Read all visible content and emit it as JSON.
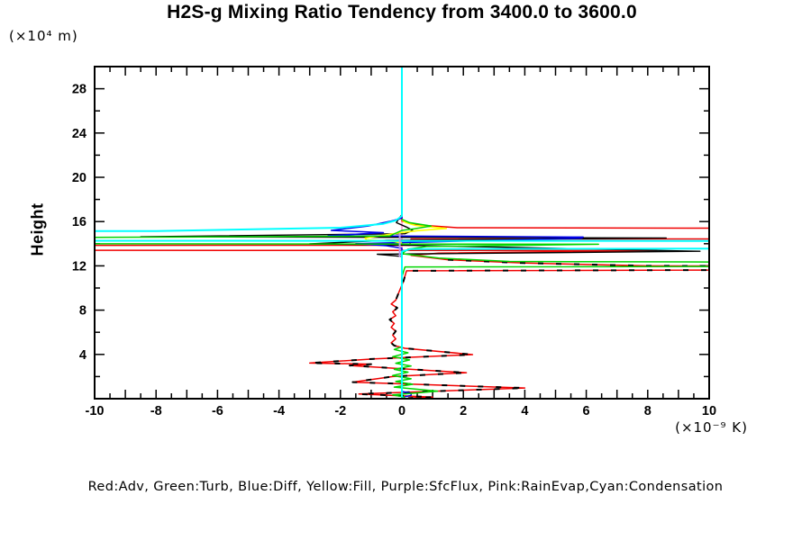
{
  "title": "H2S-g Mixing Ratio Tendency from 3400.0 to 3600.0",
  "y_axis": {
    "label": "Height",
    "unit_label": "(×10⁴ m)"
  },
  "x_axis": {
    "unit_label": "(×10⁻⁹ K)"
  },
  "legend": "Red:Adv, Green:Turb, Blue:Diff, Yellow:Fill, Purple:SfcFlux, Pink:RainEvap,Cyan:Condensation",
  "colors": {
    "red": "#f00000",
    "green": "#00d400",
    "blue": "#0000e8",
    "yellow": "#ffff00",
    "purple": "#bb99ee",
    "pink": "#ff9ed2",
    "cyan": "#00ffff",
    "black": "#000000"
  },
  "chart_data": {
    "type": "line",
    "title": "H2S-g Mixing Ratio Tendency from 3400.0 to 3600.0",
    "xlabel": "(×10⁻⁹ K)",
    "ylabel": "Height (×10⁴ m)",
    "xlim": [
      -10,
      10
    ],
    "ylim": [
      0,
      30
    ],
    "x_ticks": [
      -10,
      -8,
      -6,
      -4,
      -2,
      0,
      2,
      4,
      6,
      8,
      10
    ],
    "y_ticks": [
      4,
      8,
      12,
      16,
      20,
      24,
      28
    ],
    "grid": false,
    "legend_position": "below-plot-text-line",
    "note": "Vertical profile plot: x = tendency value (1e-9 K), y = height (1e4 m). Large |x| values are clipped at plot edges producing near-horizontal full-width strokes in the 13-15.5 height band.",
    "series": [
      {
        "name": "pink-rainevap",
        "color": "#ff9ed2",
        "width": 1.6,
        "points": [
          [
            0,
            30
          ],
          [
            0,
            0.2
          ]
        ]
      },
      {
        "name": "red-adv",
        "color": "#f00000",
        "width": 1.5,
        "points": [
          [
            0,
            16.6
          ],
          [
            0,
            16.05
          ],
          [
            0.5,
            15.7
          ],
          [
            1.8,
            15.45
          ],
          [
            45,
            15.22
          ],
          [
            45,
            14.47
          ],
          [
            0.3,
            14.42
          ],
          [
            0.25,
            13.86
          ],
          [
            -45,
            13.84
          ],
          [
            -45,
            13.45
          ],
          [
            8.3,
            13.38
          ],
          [
            1.2,
            13.15
          ],
          [
            0.3,
            12.95
          ],
          [
            1.5,
            12.55
          ],
          [
            4,
            12.25
          ],
          [
            8,
            12
          ],
          [
            45,
            11.86
          ],
          [
            0.15,
            11.55
          ],
          [
            0.05,
            10.6
          ],
          [
            -0.1,
            9.6
          ],
          [
            -0.2,
            8.9
          ],
          [
            -0.35,
            8.55
          ],
          [
            -0.15,
            8.2
          ],
          [
            -0.3,
            7.85
          ],
          [
            -0.2,
            7.5
          ],
          [
            -0.4,
            7.15
          ],
          [
            -0.25,
            6.8
          ],
          [
            -0.35,
            6.45
          ],
          [
            -0.2,
            6.1
          ],
          [
            -0.3,
            5.75
          ],
          [
            -0.2,
            5.4
          ],
          [
            -0.35,
            5.05
          ],
          [
            -0.25,
            4.8
          ],
          [
            0.1,
            4.55
          ],
          [
            2.3,
            3.98
          ],
          [
            -0.9,
            3.6
          ],
          [
            -3,
            3.22
          ],
          [
            -1,
            3.12
          ],
          [
            -1.7,
            3
          ],
          [
            2.1,
            2.35
          ],
          [
            -0.3,
            2
          ],
          [
            -1.6,
            1.5
          ],
          [
            4,
            0.97
          ],
          [
            -1.4,
            0.42
          ],
          [
            1,
            0.15
          ],
          [
            0.2,
            0.05
          ]
        ]
      },
      {
        "name": "black-total",
        "color": "#000000",
        "width": 1.4,
        "points": [
          [
            0,
            16.62
          ],
          [
            -0.1,
            16.28
          ],
          [
            -0.18,
            15.9
          ],
          [
            0.15,
            15.5
          ],
          [
            0.35,
            15.2
          ],
          [
            0.1,
            14.9
          ],
          [
            -8.5,
            14.63
          ],
          [
            8.6,
            14.52
          ],
          [
            -0.5,
            14.3
          ],
          [
            -3,
            13.98
          ],
          [
            -0.5,
            13.9
          ],
          [
            9.7,
            13.32
          ],
          [
            -0.8,
            13.05
          ],
          [
            0,
            12.85
          ]
        ]
      },
      {
        "name": "black-total-lower-dashed",
        "color": "#000000",
        "width": 2,
        "dash": "6 14",
        "points": [
          [
            1.5,
            12.55
          ],
          [
            4,
            12.25
          ],
          [
            8,
            12
          ],
          [
            45,
            11.86
          ],
          [
            0.15,
            11.55
          ],
          [
            0.05,
            10.6
          ],
          [
            -0.1,
            9.6
          ],
          [
            -0.2,
            8.9
          ],
          [
            -0.35,
            8.55
          ],
          [
            -0.15,
            8.2
          ],
          [
            -0.3,
            7.85
          ],
          [
            -0.2,
            7.5
          ],
          [
            -0.4,
            7.15
          ],
          [
            -0.25,
            6.8
          ],
          [
            -0.35,
            6.45
          ],
          [
            -0.2,
            6.1
          ],
          [
            -0.3,
            5.75
          ],
          [
            -0.2,
            5.4
          ],
          [
            -0.35,
            5.05
          ],
          [
            -0.25,
            4.8
          ],
          [
            0.1,
            4.55
          ],
          [
            2.3,
            3.98
          ],
          [
            -0.9,
            3.6
          ],
          [
            -3,
            3.22
          ],
          [
            -1,
            3.12
          ],
          [
            -1.7,
            3
          ],
          [
            2.1,
            2.35
          ],
          [
            -0.3,
            2
          ],
          [
            -1.6,
            1.5
          ],
          [
            4,
            0.97
          ],
          [
            -1.4,
            0.42
          ],
          [
            1,
            0.15
          ],
          [
            0.2,
            0.05
          ]
        ]
      },
      {
        "name": "blue-diff",
        "color": "#0000e8",
        "width": 1.5,
        "points": [
          [
            0,
            16.55
          ],
          [
            0,
            16.3
          ],
          [
            -0.35,
            16.05
          ],
          [
            -1.1,
            15.6
          ],
          [
            -2.3,
            15.2
          ],
          [
            -0.6,
            15
          ],
          [
            -2.4,
            14.72
          ],
          [
            5.9,
            14.6
          ],
          [
            5.85,
            14.5
          ],
          [
            -1.5,
            14
          ],
          [
            -0.5,
            13.82
          ],
          [
            0,
            13.6
          ],
          [
            0,
            0.65
          ],
          [
            0.3,
            0.5
          ],
          [
            0.3,
            0.3
          ],
          [
            0.05,
            0.15
          ]
        ]
      },
      {
        "name": "yellow-fill",
        "color": "#ffff00",
        "width": 1.6,
        "points": [
          [
            0,
            16.15
          ],
          [
            0.12,
            15.92
          ],
          [
            0.45,
            15.65
          ],
          [
            1.45,
            15.38
          ],
          [
            0.5,
            15.18
          ],
          [
            -0.15,
            14.95
          ],
          [
            -1.2,
            14.5
          ],
          [
            -1.15,
            14.35
          ],
          [
            -0.25,
            14.2
          ],
          [
            0,
            14.05
          ]
        ]
      },
      {
        "name": "green-turb",
        "color": "#00d400",
        "width": 1.5,
        "points": [
          [
            0,
            16.2
          ],
          [
            0.25,
            15.9
          ],
          [
            0.95,
            15.6
          ],
          [
            0.4,
            15.35
          ],
          [
            0,
            15.2
          ],
          [
            -0.4,
            14.7
          ],
          [
            -45,
            14.1
          ],
          [
            6.4,
            13.95
          ],
          [
            0.8,
            13.75
          ],
          [
            0.2,
            13.5
          ],
          [
            0,
            13.1
          ],
          [
            1.2,
            12.7
          ],
          [
            3.5,
            12.4
          ],
          [
            45,
            12.08
          ],
          [
            0.1,
            11.9
          ],
          [
            0,
            11
          ],
          [
            0,
            4.7
          ],
          [
            -0.25,
            4.45
          ],
          [
            0.2,
            4.15
          ],
          [
            -0.3,
            3.8
          ],
          [
            0.25,
            3.5
          ],
          [
            -0.2,
            3.2
          ],
          [
            0.3,
            2.95
          ],
          [
            -0.25,
            2.65
          ],
          [
            0.2,
            2.4
          ],
          [
            -0.3,
            2.1
          ],
          [
            0.3,
            1.8
          ],
          [
            -0.2,
            1.55
          ],
          [
            0.35,
            1.3
          ],
          [
            -0.25,
            1.05
          ],
          [
            0.5,
            0.85
          ],
          [
            1.16,
            0.68
          ],
          [
            0.4,
            0.5
          ],
          [
            -0.3,
            0.35
          ],
          [
            0.1,
            0.15
          ]
        ]
      },
      {
        "name": "cyan-condensation",
        "color": "#00ffff",
        "width": 2,
        "points": [
          [
            0,
            30
          ],
          [
            0,
            16.5
          ],
          [
            -0.2,
            16.1
          ],
          [
            -0.6,
            15.8
          ],
          [
            -2,
            15.45
          ],
          [
            -8,
            15.15
          ],
          [
            -45,
            15.05
          ],
          [
            -45,
            14.3
          ],
          [
            45,
            14.22
          ],
          [
            45,
            13.7
          ],
          [
            0.3,
            13.52
          ],
          [
            0,
            13.3
          ],
          [
            0,
            0.1
          ]
        ]
      },
      {
        "name": "purple-sfcflux",
        "color": "#bb99ee",
        "width": 2,
        "points": [
          [
            -0.07,
            14.95
          ],
          [
            -0.07,
            12.8
          ]
        ]
      }
    ]
  }
}
